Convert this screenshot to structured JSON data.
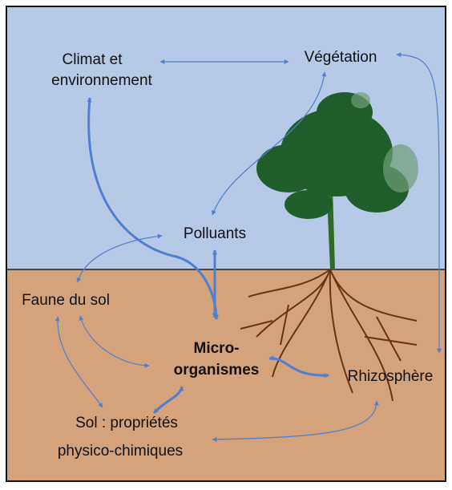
{
  "nodes": [
    {
      "lines": [
        "Climat et",
        "environnement"
      ]
    },
    {
      "lines": [
        "Végétation"
      ]
    },
    {
      "lines": [
        "Polluants"
      ]
    },
    {
      "lines": [
        "Faune du sol"
      ]
    },
    {
      "lines": [
        "Micro-",
        "organismes"
      ]
    },
    {
      "lines": [
        "Rhizosphère"
      ]
    },
    {
      "lines": [
        "Sol : propriétés",
        "physico-chimiques"
      ]
    }
  ]
}
